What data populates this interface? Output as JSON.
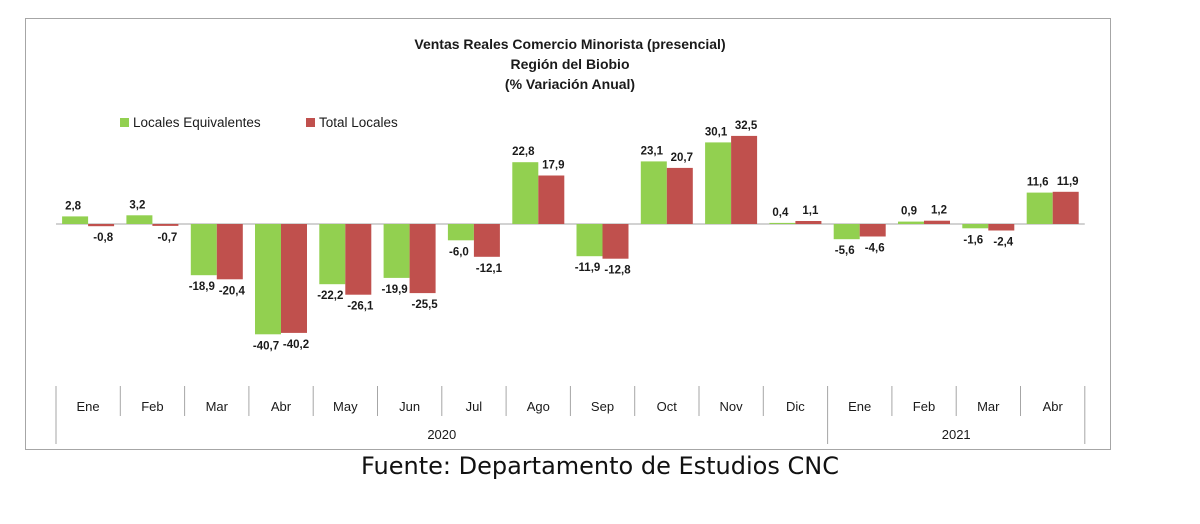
{
  "chart_data": {
    "type": "bar",
    "title_lines": [
      "Ventas Reales Comercio Minorista (presencial)",
      "Región del Biobio",
      "(% Variación Anual)"
    ],
    "categories": [
      "Ene",
      "Feb",
      "Mar",
      "Abr",
      "May",
      "Jun",
      "Jul",
      "Ago",
      "Sep",
      "Oct",
      "Nov",
      "Dic",
      "Ene",
      "Feb",
      "Mar",
      "Abr"
    ],
    "years": [
      {
        "label": "2020",
        "count": 12
      },
      {
        "label": "2021",
        "count": 4
      }
    ],
    "series": [
      {
        "name": "Locales Equivalentes",
        "color": "#92d050",
        "values": [
          2.8,
          3.2,
          -18.9,
          -40.7,
          -22.2,
          -19.9,
          -6.0,
          22.8,
          -11.9,
          23.1,
          30.1,
          0.4,
          -5.6,
          0.9,
          -1.6,
          11.6
        ],
        "labels": [
          "2,8",
          "3,2",
          "-18,9",
          "-40,7",
          "-22,2",
          "-19,9",
          "-6,0",
          "22,8",
          "-11,9",
          "23,1",
          "30,1",
          "0,4",
          "-5,6",
          "0,9",
          "-1,6",
          "11,6"
        ]
      },
      {
        "name": "Total Locales",
        "color": "#c0504d",
        "values": [
          -0.8,
          -0.7,
          -20.4,
          -40.2,
          -26.1,
          -25.5,
          -12.1,
          17.9,
          -12.8,
          20.7,
          32.5,
          1.1,
          -4.6,
          1.2,
          -2.4,
          11.9
        ],
        "labels": [
          "-0,8",
          "-0,7",
          "-20,4",
          "-40,2",
          "-26,1",
          "-25,5",
          "-12,1",
          "17,9",
          "-12,8",
          "20,7",
          "32,5",
          "1,1",
          "-4,6",
          "1,2",
          "-2,4",
          "11,9"
        ]
      }
    ],
    "legend_position": "top-left",
    "grid": false
  },
  "caption": "Fuente: Departamento de Estudios CNC"
}
